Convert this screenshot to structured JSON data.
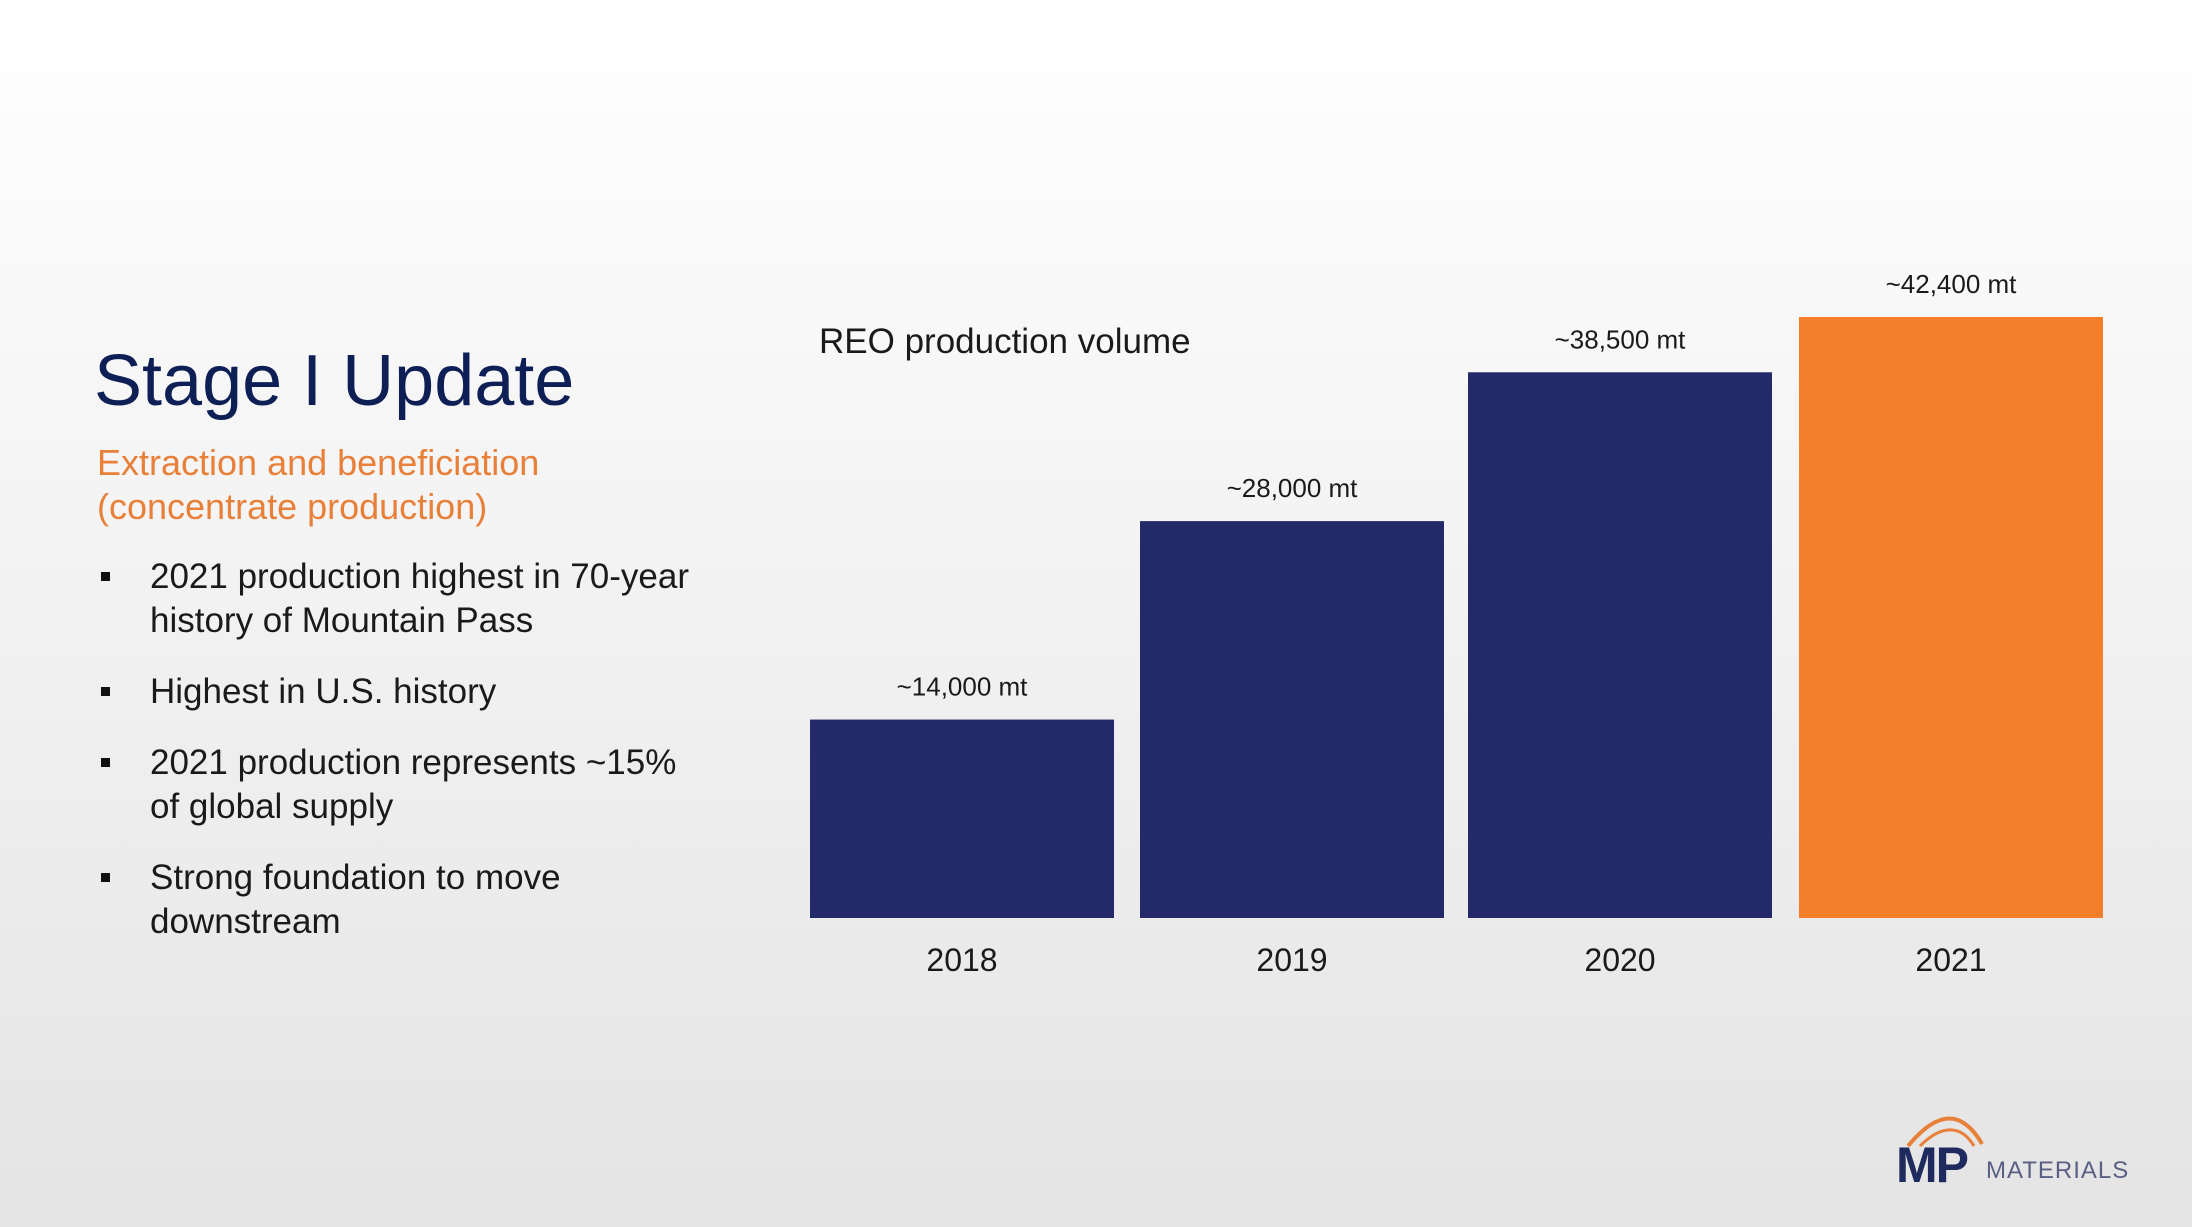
{
  "title": "Stage I Update",
  "subtitle": "Extraction and beneficiation (concentrate production)",
  "bullets": [
    "2021 production highest in 70-year history of Mountain Pass",
    "Highest in U.S. history",
    "2021 production represents ~15% of global supply",
    "Strong foundation to move downstream"
  ],
  "logo": {
    "mark": "MP",
    "word": "MATERIALS",
    "icon": "mountain-arc-icon"
  },
  "colors": {
    "navy": "#242a69",
    "orange": "#f47f2a",
    "title": "#0e1f56",
    "subtitle": "#e8803a"
  },
  "chart_data": {
    "type": "bar",
    "title": "REO production volume",
    "categories": [
      "2018",
      "2019",
      "2020",
      "2021"
    ],
    "values": [
      14000,
      28000,
      38500,
      42400
    ],
    "data_labels": [
      "~14,000 mt",
      "~28,000 mt",
      "~38,500 mt",
      "~42,400 mt"
    ],
    "unit": "mt",
    "ylim": [
      0,
      43000
    ],
    "grid": false,
    "legend": "none",
    "bar_colors": [
      "#242a69",
      "#242a69",
      "#242a69",
      "#f47f2a"
    ]
  }
}
